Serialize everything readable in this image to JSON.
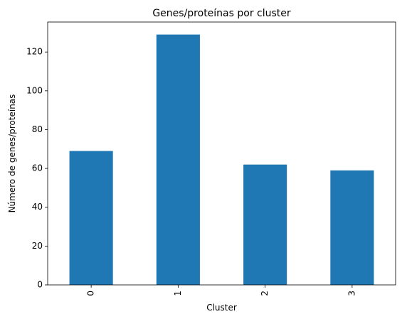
{
  "chart_data": {
    "type": "bar",
    "title": "Genes/proteínas por cluster",
    "xlabel": "Cluster",
    "ylabel": "Número de genes/proteínas",
    "categories": [
      "0",
      "1",
      "2",
      "3"
    ],
    "values": [
      69,
      129,
      62,
      59
    ],
    "ylim": [
      0,
      135.45
    ],
    "yticks": [
      0,
      20,
      40,
      60,
      80,
      100,
      120
    ],
    "bar_color": "#1f77b4",
    "grid": false,
    "legend": "none"
  }
}
